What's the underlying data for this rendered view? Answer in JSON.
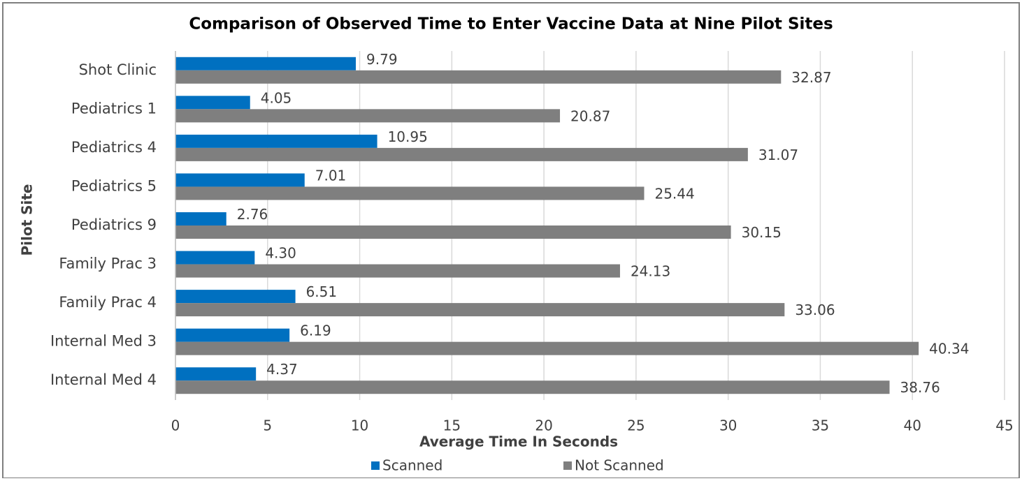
{
  "chart_data": {
    "type": "bar",
    "orientation": "horizontal",
    "title": "Comparison of Observed Time to Enter Vaccine Data at Nine Pilot Sites",
    "x_label": "Average Time In Seconds",
    "y_label": "Pilot Site",
    "categories": [
      "Shot Clinic",
      "Pediatrics 1",
      "Pediatrics 4",
      "Pediatrics 5",
      "Pediatrics 9",
      "Family Prac 3",
      "Family Prac 4",
      "Internal Med 3",
      "Internal Med 4"
    ],
    "series": [
      {
        "name": "Scanned",
        "color": "#0070c0",
        "values": [
          9.79,
          4.05,
          10.95,
          7.01,
          2.76,
          4.3,
          6.51,
          6.19,
          4.37
        ],
        "value_labels": [
          "9.79",
          "4.05",
          "10.95",
          "7.01",
          "2.76",
          "4.30",
          "6.51",
          "6.19",
          "4.37"
        ]
      },
      {
        "name": "Not Scanned",
        "color": "#7f7f7f",
        "values": [
          32.87,
          20.87,
          31.07,
          25.44,
          30.15,
          24.13,
          33.06,
          40.34,
          38.76
        ],
        "value_labels": [
          "32.87",
          "20.87",
          "31.07",
          "25.44",
          "30.15",
          "24.13",
          "33.06",
          "40.34",
          "38.76"
        ]
      }
    ],
    "xlim": [
      0,
      45
    ],
    "xticks": [
      0,
      5,
      10,
      15,
      20,
      25,
      30,
      35,
      40,
      45
    ],
    "grid": true,
    "legend": "bottom"
  }
}
